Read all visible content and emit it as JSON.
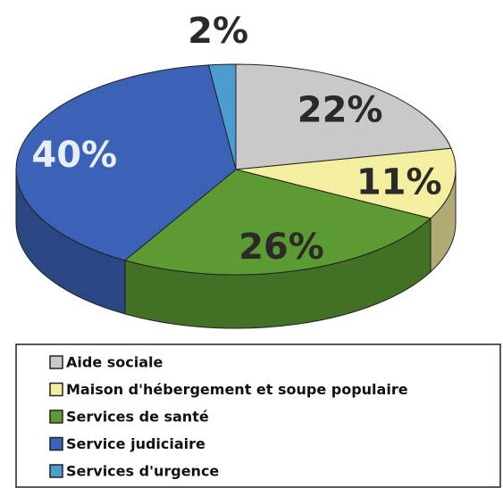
{
  "chart_data": {
    "type": "pie",
    "categories": [
      "Aide sociale",
      "Maison d'hébergement et soupe populaire",
      "Services de santé",
      "Service judiciaire",
      "Services d'urgence"
    ],
    "values": [
      22,
      11,
      26,
      40,
      2
    ],
    "value_labels": [
      "22%",
      "11%",
      "26%",
      "40%",
      "2%"
    ],
    "colors": [
      "#c9c9c9",
      "#f4eea0",
      "#5c9b33",
      "#3b62b6",
      "#4c9dcf"
    ],
    "legend": "bottom"
  }
}
